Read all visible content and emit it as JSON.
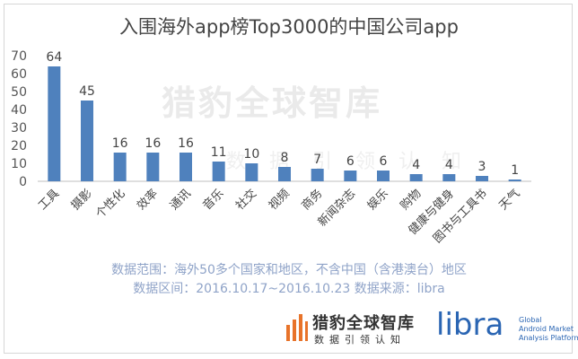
{
  "chart_data": {
    "type": "bar",
    "title": "入围海外app榜Top3000的中国公司app",
    "categories": [
      "工具",
      "摄影",
      "个性化",
      "效率",
      "通讯",
      "音乐",
      "社交",
      "视频",
      "商务",
      "新闻杂志",
      "娱乐",
      "购物",
      "健康与健身",
      "图书与工具书",
      "天气"
    ],
    "values": [
      64,
      45,
      16,
      16,
      16,
      11,
      10,
      8,
      7,
      6,
      6,
      4,
      4,
      3,
      1
    ],
    "yticks": [
      0,
      10,
      20,
      30,
      40,
      50,
      60,
      70
    ],
    "ylim": [
      0,
      70
    ],
    "xlabel": "",
    "ylabel": "",
    "grid": false,
    "bar_color": "#4f81bd"
  },
  "notes": {
    "range": "数据范围：海外50多个国家和地区，不含中国（含港澳台）地区",
    "period": "数据区间：2016.10.17~2016.10.23 数据来源：libra"
  },
  "watermark": {
    "main": "猎豹全球智库",
    "sub": "数据引领认知"
  },
  "footer": {
    "brand_cn": "猎豹全球智库",
    "brand_sub": "数据引领认知",
    "libra_word": "libra",
    "libra_tag": [
      "Global",
      "Android Market",
      "Analysis Platform"
    ]
  }
}
